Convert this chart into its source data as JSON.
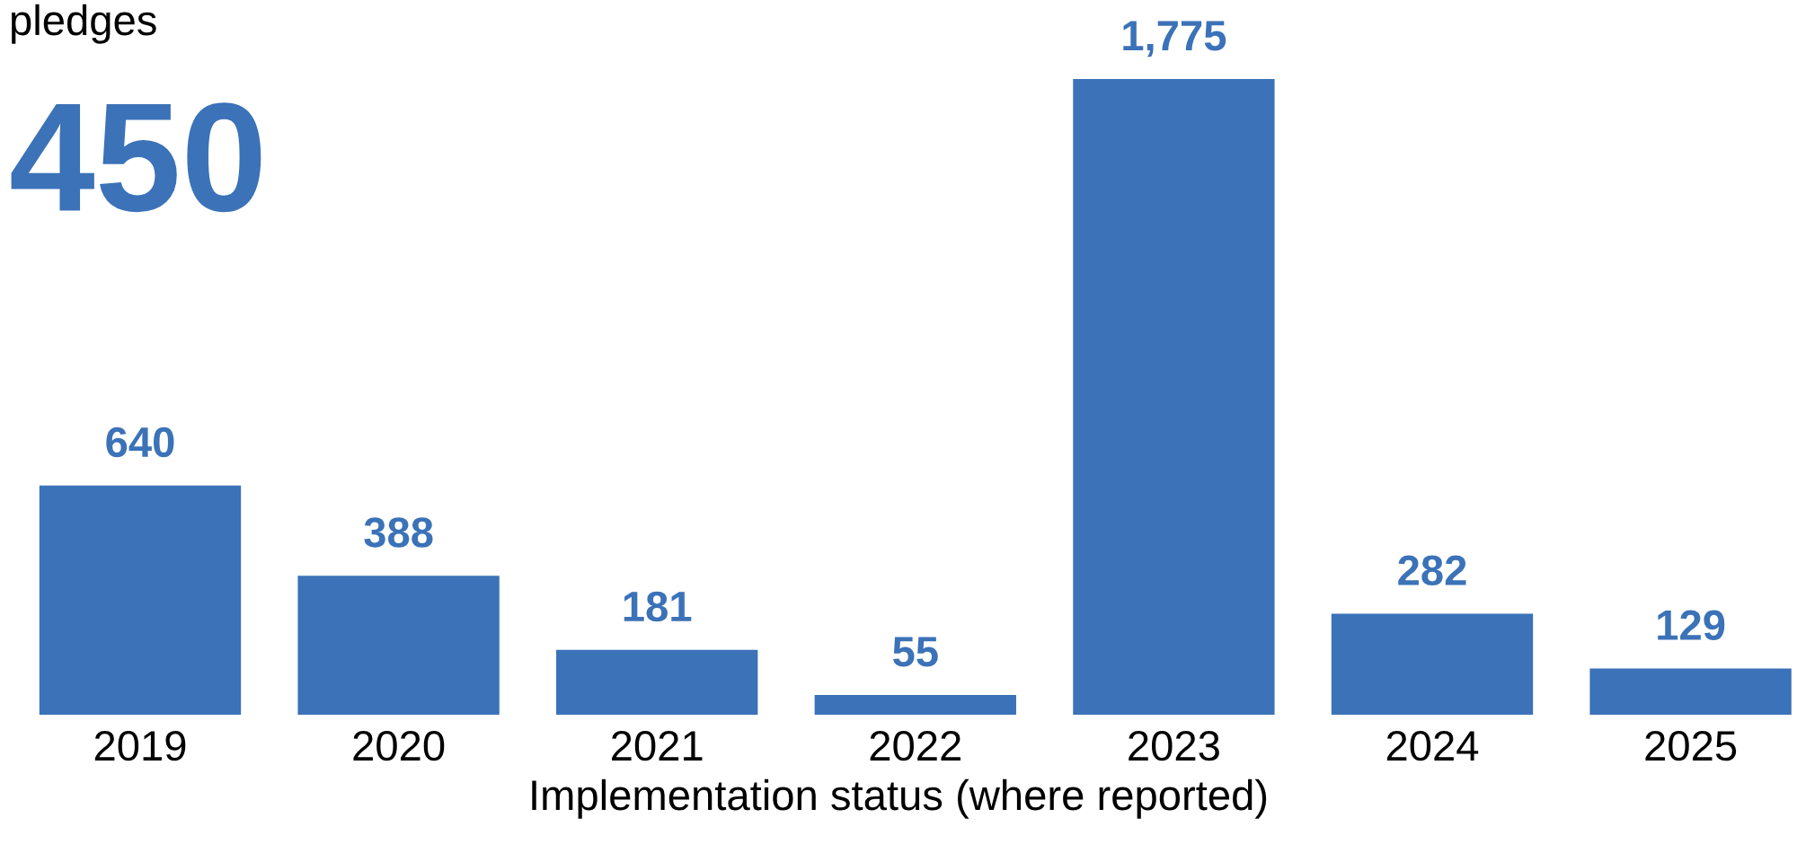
{
  "chart_data": {
    "type": "bar",
    "categories": [
      "2019",
      "2020",
      "2021",
      "2022",
      "2023",
      "2024",
      "2025"
    ],
    "values": [
      640,
      388,
      181,
      55,
      1775,
      282,
      129
    ],
    "value_labels": [
      "640",
      "388",
      "181",
      "55",
      "1,775",
      "282",
      "129"
    ],
    "color": "#3b72b8",
    "xlabel": "Implementation status (where reported)",
    "annotations": [
      "pledges",
      "450"
    ]
  }
}
